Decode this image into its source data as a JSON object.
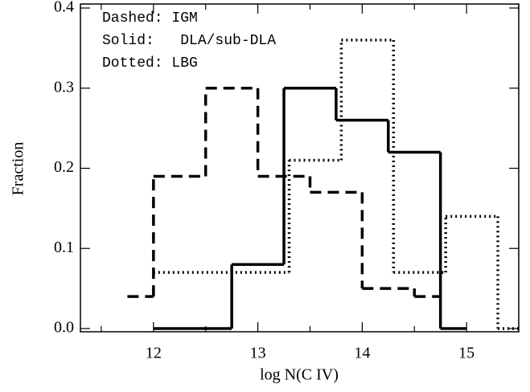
{
  "chart_data": {
    "type": "histogram",
    "xlabel": "log N(C IV)",
    "ylabel": "Fraction",
    "annotations": [
      "Dashed: IGM",
      "Solid:   DLA/sub-DLA",
      "Dotted: LBG"
    ],
    "xlim": [
      11.3,
      15.5
    ],
    "ylim": [
      -0.004,
      0.405
    ],
    "xticks": [
      12,
      13,
      14,
      15
    ],
    "xminorticks": [
      11.5,
      12.5,
      13.5,
      14.5,
      15.5
    ],
    "yticks": [
      {
        "value": 0,
        "label": "0.0"
      },
      0.1,
      0.2,
      0.3,
      0.4
    ],
    "series": [
      {
        "style": "dashed",
        "color": "#000000",
        "bins": [
          11.75,
          12,
          12.5,
          13,
          13.5,
          14,
          14.5,
          14.75
        ],
        "counts": [
          0.04,
          0.19,
          0.3,
          0.19,
          0.17,
          0.05,
          0.04
        ]
      },
      {
        "style": "solid",
        "color": "#000000",
        "bins": [
          12,
          12.75,
          13.25,
          13.75,
          14.25,
          14.75,
          15
        ],
        "counts": [
          0,
          0.08,
          0.3,
          0.26,
          0.22,
          0
        ]
      },
      {
        "style": "dotted",
        "color": "#000000",
        "bins": [
          12,
          13.3,
          13.8,
          14.3,
          14.8,
          15.3,
          15.5
        ],
        "counts": [
          0.07,
          0.21,
          0.36,
          0.07,
          0.14,
          0
        ]
      }
    ]
  }
}
